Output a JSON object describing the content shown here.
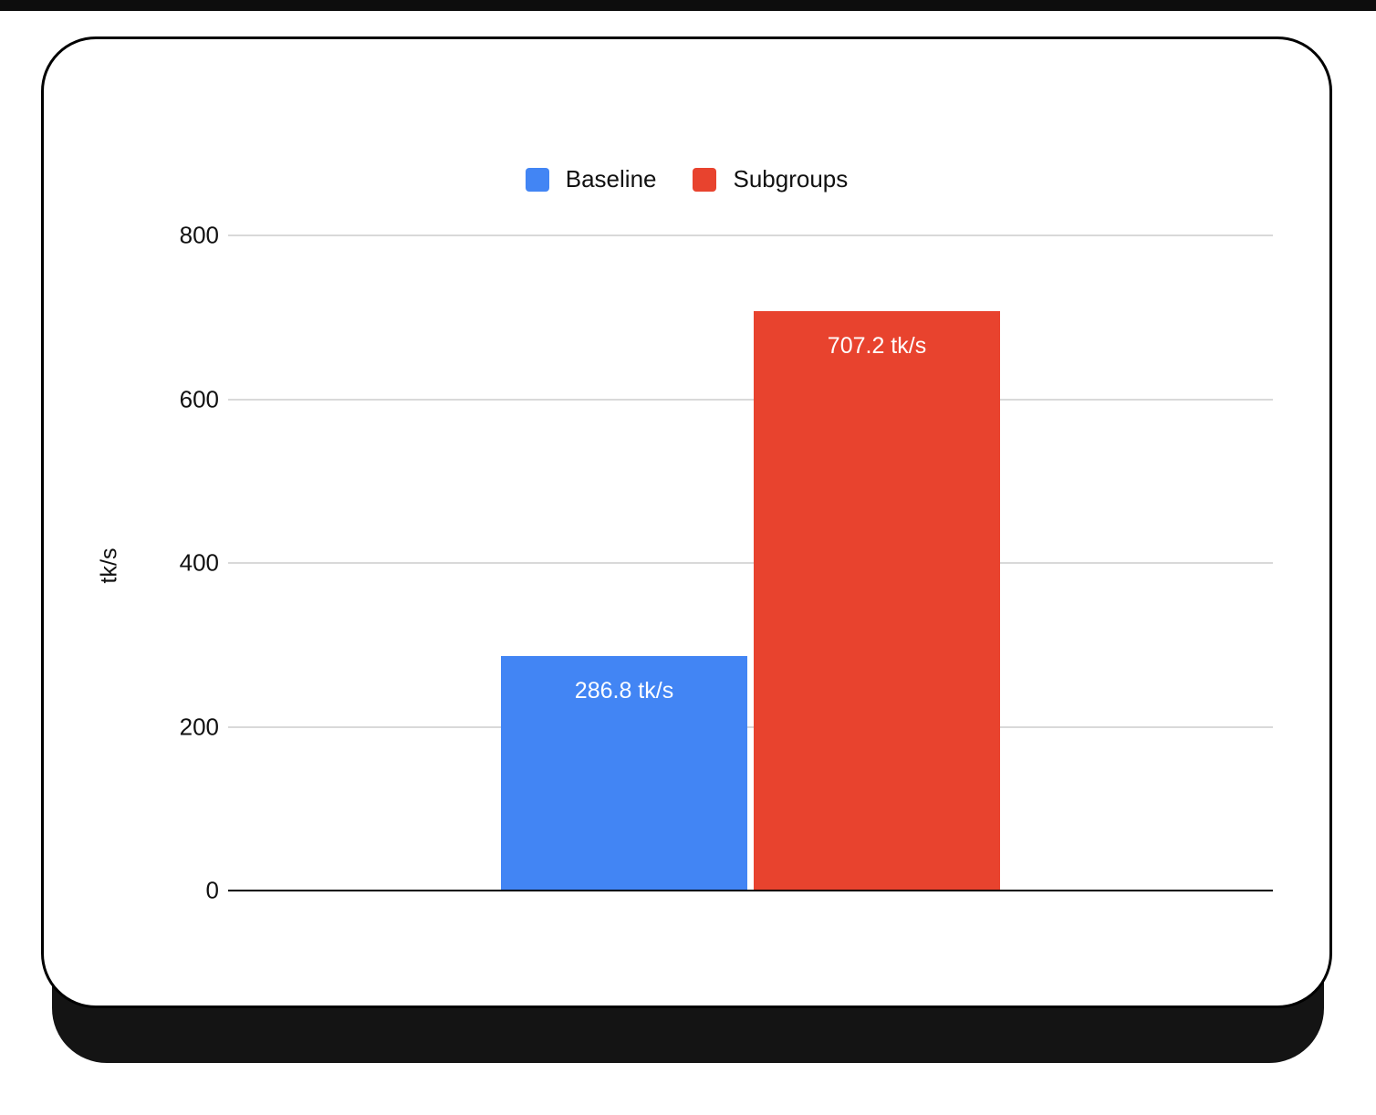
{
  "chart_data": {
    "type": "bar",
    "title": "",
    "categories": [
      ""
    ],
    "series": [
      {
        "name": "Baseline",
        "values": [
          286.8
        ],
        "color": "#4285f4",
        "data_label": "286.8 tk/s"
      },
      {
        "name": "Subgroups",
        "values": [
          707.2
        ],
        "color": "#e8432e",
        "data_label": "707.2 tk/s"
      }
    ],
    "xlabel": "",
    "ylabel": "tk/s",
    "ylim": [
      0,
      800
    ],
    "yticks": [
      0,
      200,
      400,
      600,
      800
    ],
    "grid": true,
    "legend_position": "top"
  },
  "colors": {
    "baseline_blue": "#4285f4",
    "subgroups_red": "#e8432e",
    "gridline": "#d9d9d9",
    "axis_line": "#000000",
    "card_background": "#ffffff",
    "card_border": "#000000",
    "card_shadow": "#141414",
    "bar_label_text": "#ffffff"
  }
}
